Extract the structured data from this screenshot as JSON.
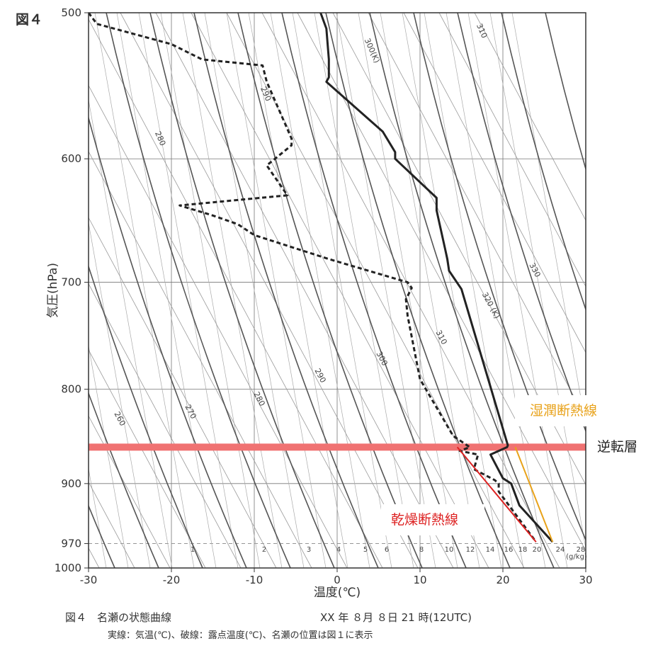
{
  "figure_label": "図４",
  "caption": {
    "title": "図４　名瀬の状態曲線",
    "datetime": "XX 年 ８月 ８日 21 時(12UTC)",
    "note": "実線：気温(℃)、破線：露点温度(℃)、名瀬の位置は図１に表示"
  },
  "annotations": {
    "moist": "湿潤断熱線",
    "inversion": "逆転層",
    "dry": "乾燥断熱線"
  },
  "chart_data": {
    "type": "line",
    "title": "",
    "xlabel": "温度(℃)",
    "ylabel": "気圧(hPa)",
    "x_ticks": [
      -30,
      -20,
      -10,
      0,
      10,
      20,
      30
    ],
    "p_ticks": [
      500,
      600,
      700,
      800,
      900,
      970,
      1000
    ],
    "xlim": [
      -30,
      30
    ],
    "ylim": [
      1000,
      500
    ],
    "y_scale": "log",
    "grid": true,
    "series": [
      {
        "name": "気温",
        "style": "solid",
        "color": "#222222",
        "points": [
          [
            -2,
            500
          ],
          [
            -1.3,
            510
          ],
          [
            -1,
            530
          ],
          [
            -1,
            542
          ],
          [
            -1.3,
            545
          ],
          [
            5.5,
            580
          ],
          [
            7,
            595
          ],
          [
            7,
            600
          ],
          [
            12,
            630
          ],
          [
            12,
            640
          ],
          [
            13.3,
            680
          ],
          [
            13.5,
            690
          ],
          [
            15,
            706
          ],
          [
            20.6,
            858
          ],
          [
            20.5,
            860
          ],
          [
            18.5,
            868
          ],
          [
            20,
            894
          ],
          [
            21,
            900
          ],
          [
            22,
            925
          ],
          [
            26,
            968
          ]
        ]
      },
      {
        "name": "露点温度",
        "style": "dashed",
        "color": "#222222",
        "points": [
          [
            -30,
            500
          ],
          [
            -29,
            507
          ],
          [
            -20,
            520
          ],
          [
            -16.3,
            530
          ],
          [
            -9,
            534
          ],
          [
            -8.5,
            545
          ],
          [
            -5.5,
            585
          ],
          [
            -5.5,
            590
          ],
          [
            -8.5,
            605
          ],
          [
            -6,
            628
          ],
          [
            -19,
            636
          ],
          [
            -15,
            644
          ],
          [
            -12,
            651
          ],
          [
            -10,
            660
          ],
          [
            -1,
            680
          ],
          [
            8.5,
            700
          ],
          [
            9,
            705
          ],
          [
            8.3,
            715
          ],
          [
            8.5,
            730
          ],
          [
            10,
            790
          ],
          [
            14,
            848
          ],
          [
            16,
            860
          ],
          [
            14.8,
            864
          ],
          [
            17,
            868
          ],
          [
            16.5,
            884
          ],
          [
            19,
            896
          ],
          [
            19.5,
            900
          ],
          [
            19.5,
            909
          ],
          [
            24,
            968
          ]
        ]
      }
    ],
    "dry_adiabat_labels": [
      "260",
      "270",
      "280",
      "290",
      "300",
      "310",
      "320 (K)",
      "330"
    ],
    "moist_adiabat_labels": [
      "280",
      "290",
      "300(K)",
      "310"
    ],
    "mixing_ratio_labels": [
      "1",
      "2",
      "3",
      "4",
      "5",
      "6",
      "8",
      "10",
      "12",
      "14",
      "16",
      "18",
      "20",
      "24",
      "28",
      "(g/kg)"
    ],
    "guide_lines": [
      {
        "name": "乾燥断熱線",
        "color": "#dd2222",
        "points": [
          [
            14.5,
            860
          ],
          [
            24,
            968
          ]
        ]
      },
      {
        "name": "湿潤断熱線",
        "color": "#e8a21a",
        "points": [
          [
            21.5,
            860
          ],
          [
            26,
            968
          ]
        ]
      }
    ],
    "inversion_layer": {
      "pressure": 860,
      "color": "#f07272"
    }
  }
}
